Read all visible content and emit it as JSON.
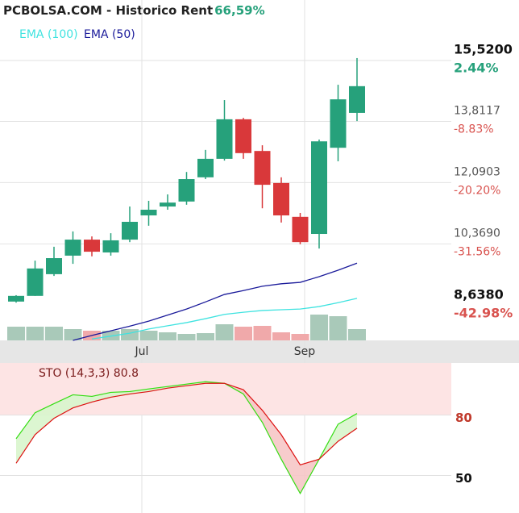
{
  "chart_data": [
    {
      "type": "candlestick",
      "title": "PCBOLSA.COM - Historico  Rent",
      "subtitle": "66,59%",
      "up_color": "#26a17b",
      "down_color": "#d9383a",
      "open": [
        8.75,
        8.91,
        9.52,
        10.04,
        10.49,
        10.13,
        10.49,
        11.17,
        11.42,
        11.56,
        12.24,
        12.76,
        13.87,
        12.98,
        12.08,
        11.13,
        10.65,
        13.07,
        14.05
      ],
      "high": [
        8.93,
        9.9,
        10.29,
        10.72,
        10.58,
        10.67,
        11.42,
        11.58,
        11.76,
        12.39,
        13.01,
        14.41,
        13.91,
        13.14,
        12.24,
        11.24,
        13.3,
        14.84,
        15.59
      ],
      "low": [
        8.72,
        8.91,
        9.47,
        9.81,
        10.02,
        10.04,
        10.42,
        10.88,
        11.33,
        11.47,
        12.19,
        12.71,
        12.76,
        11.37,
        10.97,
        10.36,
        10.24,
        12.69,
        13.82
      ],
      "close": [
        8.91,
        9.68,
        9.97,
        10.49,
        10.15,
        10.47,
        10.99,
        11.33,
        11.53,
        12.19,
        12.76,
        13.87,
        12.92,
        12.03,
        11.17,
        10.42,
        13.25,
        14.43,
        14.8
      ],
      "volume": {
        "up_color": "#a9c9b9",
        "down_color": "#f0a9aa",
        "values": [
          17,
          17,
          17,
          14,
          12,
          12,
          14,
          12,
          10,
          8,
          9,
          20,
          17,
          18,
          10,
          8,
          32,
          30,
          14
        ]
      },
      "series": [
        {
          "name": "EMA (100)",
          "color": "#3fe3e0",
          "values": [
            null,
            null,
            null,
            null,
            7.7,
            7.78,
            7.86,
            7.98,
            8.07,
            8.16,
            8.27,
            8.39,
            8.45,
            8.5,
            8.52,
            8.54,
            8.61,
            8.72,
            8.84
          ]
        },
        {
          "name": "EMA (50)",
          "color": "#1a1a9a",
          "values": [
            null,
            null,
            null,
            7.66,
            7.8,
            7.93,
            8.06,
            8.2,
            8.37,
            8.54,
            8.74,
            8.95,
            9.06,
            9.18,
            9.25,
            9.29,
            9.45,
            9.63,
            9.83
          ]
        }
      ],
      "ylim": [
        7.66,
        17.22
      ],
      "yticks": [
        {
          "value": 15.52,
          "label": "15,5200"
        },
        {
          "value": 13.8117,
          "label": "13,8117"
        },
        {
          "value": 12.0903,
          "label": "12,0903"
        },
        {
          "value": 10.369,
          "label": "10,3690"
        },
        {
          "value": 8.638,
          "label": "8,6380"
        }
      ],
      "ytick_changes": [
        "2.44%",
        "-8.83%",
        "-20.20%",
        "-31.56%",
        "-42.98%"
      ],
      "xtick_labels": [
        "Jul",
        "Sep"
      ],
      "grid": true
    },
    {
      "type": "line",
      "title": "STO (14,3,3) 80.8",
      "series": [
        {
          "color": "#33dd11",
          "values": [
            68.3,
            81.2,
            85.7,
            90.1,
            89.3,
            91.3,
            91.7,
            93.0,
            94.2,
            95.4,
            96.6,
            95.8,
            90.5,
            76.4,
            58.1,
            41.1,
            58.1,
            75.5,
            80.8
          ]
        },
        {
          "color": "#dd1111",
          "values": [
            56.1,
            70.3,
            78.4,
            83.6,
            86.5,
            88.9,
            90.5,
            91.7,
            93.4,
            94.6,
            95.8,
            95.8,
            92.6,
            82.4,
            70.3,
            55.3,
            58.1,
            67.0,
            73.5
          ]
        }
      ],
      "ylim": [
        31.4,
        105.9
      ],
      "yticks": [
        80,
        50
      ]
    }
  ]
}
